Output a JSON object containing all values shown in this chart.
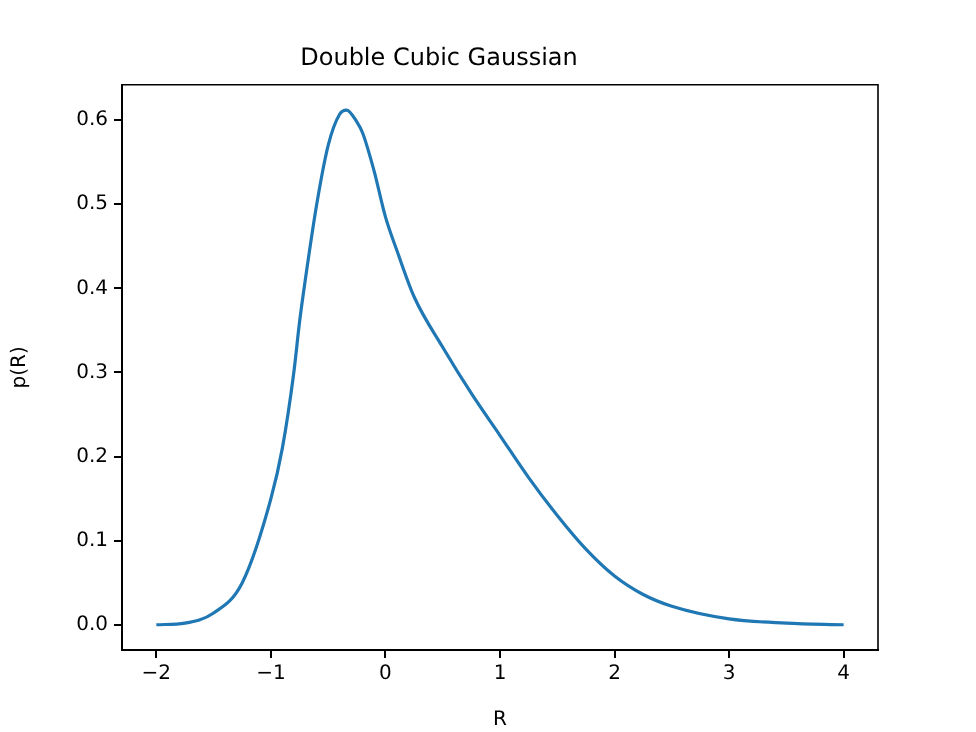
{
  "chart_data": {
    "type": "line",
    "title": "Double Cubic Gaussian",
    "xlabel": "R",
    "ylabel": "p(R)",
    "x": [
      -2,
      -1.75,
      -1.5,
      -1.25,
      -1,
      -0.9,
      -0.8,
      -0.75,
      -0.7,
      -0.6,
      -0.5,
      -0.4,
      -0.34,
      -0.25,
      -0.2,
      -0.1,
      0,
      0.1,
      0.25,
      0.5,
      0.75,
      1,
      1.25,
      1.5,
      1.75,
      2,
      2.25,
      2.5,
      3,
      3.5,
      4
    ],
    "series": [
      {
        "color": "#1f77b4",
        "values": [
          0,
          0.002,
          0.014,
          0.05,
          0.15,
          0.21,
          0.3,
          0.36,
          0.41,
          0.5,
          0.57,
          0.607,
          0.612,
          0.598,
          0.585,
          0.54,
          0.485,
          0.445,
          0.39,
          0.33,
          0.275,
          0.225,
          0.175,
          0.13,
          0.09,
          0.058,
          0.036,
          0.022,
          0.007,
          0.002,
          0
        ]
      }
    ],
    "xlim": [
      -2.3,
      4.3
    ],
    "ylim": [
      -0.03,
      0.642
    ],
    "xticks": [
      {
        "value": -2,
        "label": "−2"
      },
      {
        "value": -1,
        "label": "−1"
      },
      0,
      1,
      2,
      3,
      4
    ],
    "yticks": [
      {
        "value": 0,
        "label": "0.0"
      },
      {
        "value": 0.1,
        "label": "0.1"
      },
      {
        "value": 0.2,
        "label": "0.2"
      },
      {
        "value": 0.3,
        "label": "0.3"
      },
      {
        "value": 0.4,
        "label": "0.4"
      },
      {
        "value": 0.5,
        "label": "0.5"
      },
      {
        "value": 0.6,
        "label": "0.6"
      }
    ],
    "legend": false,
    "marker": "none",
    "line_style": "solid"
  }
}
